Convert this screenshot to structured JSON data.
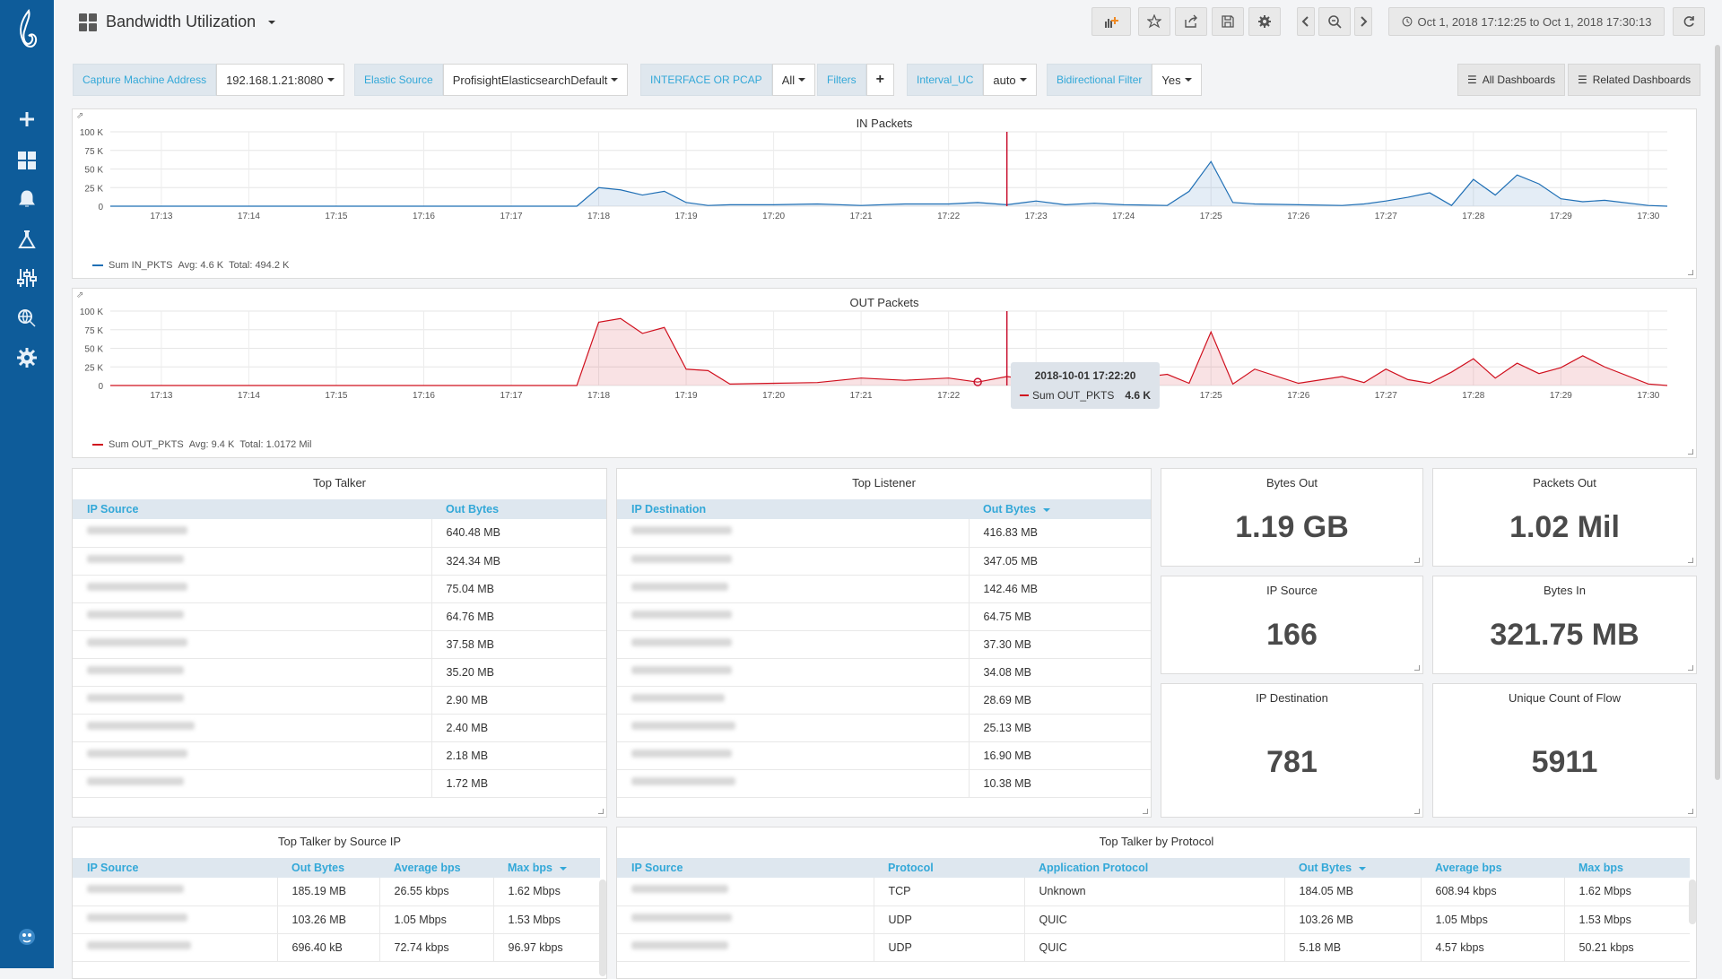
{
  "topbar": {
    "title": "Bandwidth Utilization",
    "time_range": "Oct 1, 2018 17:12:25 to Oct 1, 2018 17:30:13"
  },
  "variables": [
    {
      "label": "Capture Machine Address",
      "value": "192.168.1.21:8080"
    },
    {
      "label": "Elastic Source",
      "value": "ProfisightElasticsearchDefault"
    },
    {
      "label": "INTERFACE OR PCAP",
      "value": "All"
    },
    {
      "label": "Filters",
      "value": "+"
    },
    {
      "label": "Interval_UC",
      "value": "auto"
    },
    {
      "label": "Bidirectional Filter",
      "value": "Yes"
    }
  ],
  "links": {
    "all_dashboards": "All Dashboards",
    "related_dashboards": "Related Dashboards"
  },
  "sidebar": {
    "icons": [
      "logo-icon",
      "plus-icon",
      "dashboards-icon",
      "alerts-icon",
      "explore-icon",
      "sliders-icon",
      "search-globe-icon",
      "settings-icon",
      "avatar-icon"
    ]
  },
  "chart_data": [
    {
      "type": "area",
      "title": "IN Packets",
      "x_ticks": [
        "17:13",
        "17:14",
        "17:15",
        "17:16",
        "17:17",
        "17:18",
        "17:19",
        "17:20",
        "17:21",
        "17:22",
        "17:23",
        "17:24",
        "17:25",
        "17:26",
        "17:27",
        "17:28",
        "17:29",
        "17:30"
      ],
      "y_ticks": [
        "100 K",
        "75 K",
        "50 K",
        "25 K",
        "0"
      ],
      "ylim": [
        0,
        100000
      ],
      "xlim": [
        "17:12:25",
        "17:30:13"
      ],
      "color": "#1f6fb5",
      "series": [
        {
          "name": "Sum IN_PKTS",
          "avg": "Avg: 4.6 K",
          "total": "Total: 494.2 K",
          "x": [
            "17:12:25",
            "17:13",
            "17:14",
            "17:15",
            "17:16",
            "17:17",
            "17:17:45",
            "17:18",
            "17:18:15",
            "17:18:30",
            "17:18:45",
            "17:19",
            "17:19:15",
            "17:19:30",
            "17:20",
            "17:20:30",
            "17:21",
            "17:21:30",
            "17:22",
            "17:22:20",
            "17:22:40",
            "17:23",
            "17:23:20",
            "17:23:40",
            "17:24",
            "17:24:30",
            "17:24:45",
            "17:25",
            "17:25:15",
            "17:25:30",
            "17:26",
            "17:26:30",
            "17:26:45",
            "17:27",
            "17:27:15",
            "17:27:30",
            "17:27:45",
            "17:28",
            "17:28:15",
            "17:28:30",
            "17:28:45",
            "17:29",
            "17:29:15",
            "17:29:30",
            "17:30",
            "17:30:13"
          ],
          "values": [
            0,
            0,
            0,
            0,
            0,
            0,
            0,
            25000,
            22000,
            15000,
            20000,
            5000,
            1000,
            2000,
            2000,
            3000,
            1000,
            3000,
            3000,
            5000,
            2000,
            7000,
            2000,
            4000,
            2000,
            1000,
            20000,
            60000,
            5000,
            3000,
            2000,
            1000,
            3000,
            7000,
            12000,
            18000,
            1000,
            36000,
            15000,
            42000,
            30000,
            10000,
            6000,
            8000,
            1000,
            0
          ]
        }
      ]
    },
    {
      "type": "area",
      "title": "OUT Packets",
      "x_ticks": [
        "17:13",
        "17:14",
        "17:15",
        "17:16",
        "17:17",
        "17:18",
        "17:19",
        "17:20",
        "17:21",
        "17:22",
        "17:23",
        "17:24",
        "17:25",
        "17:26",
        "17:27",
        "17:28",
        "17:29",
        "17:30"
      ],
      "y_ticks": [
        "100 K",
        "75 K",
        "50 K",
        "25 K",
        "0"
      ],
      "ylim": [
        0,
        100000
      ],
      "xlim": [
        "17:12:25",
        "17:30:13"
      ],
      "color": "#d0101e",
      "series": [
        {
          "name": "Sum OUT_PKTS",
          "avg": "Avg: 9.4 K",
          "total": "Total: 1.0172 Mil",
          "x": [
            "17:12:25",
            "17:13",
            "17:14",
            "17:15",
            "17:16",
            "17:17",
            "17:17:45",
            "17:18",
            "17:18:15",
            "17:18:30",
            "17:18:45",
            "17:19",
            "17:19:15",
            "17:19:30",
            "17:20",
            "17:20:30",
            "17:21",
            "17:21:30",
            "17:22",
            "17:22:20",
            "17:22:40",
            "17:23",
            "17:23:20",
            "17:23:40",
            "17:24",
            "17:24:30",
            "17:24:45",
            "17:25",
            "17:25:15",
            "17:25:30",
            "17:26",
            "17:26:30",
            "17:26:45",
            "17:27",
            "17:27:15",
            "17:27:30",
            "17:27:45",
            "17:28",
            "17:28:15",
            "17:28:30",
            "17:28:45",
            "17:29",
            "17:29:15",
            "17:29:30",
            "17:30",
            "17:30:13"
          ],
          "values": [
            0,
            0,
            0,
            0,
            0,
            0,
            0,
            85000,
            90000,
            70000,
            78000,
            22000,
            20000,
            2000,
            3000,
            4000,
            10000,
            7000,
            10000,
            4600,
            12000,
            7000,
            10000,
            5000,
            8000,
            15000,
            3000,
            72000,
            2000,
            22000,
            3000,
            12000,
            4000,
            22000,
            8000,
            3000,
            18000,
            36000,
            10000,
            30000,
            16000,
            24000,
            40000,
            25000,
            2000,
            0
          ]
        }
      ]
    }
  ],
  "hover": {
    "time": "2018-10-01 17:22:20",
    "series": "Sum OUT_PKTS",
    "value": "4.6 K"
  },
  "top_talker": {
    "title": "Top Talker",
    "headers": [
      "IP Source",
      "Out Bytes"
    ],
    "rows": [
      [
        "192.168.1.150",
        "640.48 MB"
      ],
      [
        "192.168.1.75",
        "324.34 MB"
      ],
      [
        "192.168.1.130",
        "75.04 MB"
      ],
      [
        "192.168.1.65",
        "64.76 MB"
      ],
      [
        "192.168.1.188",
        "37.58 MB"
      ],
      [
        "192.168.1.66",
        "35.20 MB"
      ],
      [
        "192.168.1.30",
        "2.90 MB"
      ],
      [
        "100.117.126.188",
        "2.40 MB"
      ],
      [
        "192.168.1.135",
        "2.18 MB"
      ],
      [
        "192.168.1.12",
        "1.72 MB"
      ]
    ]
  },
  "top_listener": {
    "title": "Top Listener",
    "headers": [
      "IP Destination",
      "Out Bytes"
    ],
    "rows": [
      [
        "210.255.8.000",
        "416.83 MB"
      ],
      [
        "210.255.8.000",
        "347.05 MB"
      ],
      [
        "74.125.8.215",
        "142.46 MB"
      ],
      [
        "192.168.1.200",
        "64.75 MB"
      ],
      [
        "210.255.8.200",
        "37.30 MB"
      ],
      [
        "208.85.200.75",
        "34.08 MB"
      ],
      [
        "10.107.4.80",
        "28.69 MB"
      ],
      [
        "172.217.160.46",
        "25.13 MB"
      ],
      [
        "209.85.210.25",
        "16.90 MB"
      ],
      [
        "210.100.10.210",
        "10.38 MB"
      ]
    ]
  },
  "stats": [
    {
      "title": "Bytes Out",
      "value": "1.19 GB"
    },
    {
      "title": "Packets Out",
      "value": "1.02 Mil"
    },
    {
      "title": "IP Source",
      "value": "166"
    },
    {
      "title": "Bytes In",
      "value": "321.75 MB"
    },
    {
      "title": "IP Destination",
      "value": "781"
    },
    {
      "title": "Unique Count of Flow",
      "value": "5911"
    }
  ],
  "talker_by_ip": {
    "title": "Top Talker by Source IP",
    "headers": [
      "IP Source",
      "Out Bytes",
      "Average bps",
      "Max bps"
    ],
    "rows": [
      [
        "192.168.1.66",
        "185.19 MB",
        "26.55 kbps",
        "1.62 Mbps"
      ],
      [
        "208.85.200.75",
        "103.26 MB",
        "1.05 Mbps",
        "1.53 Mbps"
      ],
      [
        "172.100.75.200",
        "696.40 kB",
        "72.74 kbps",
        "96.97 kbps"
      ]
    ]
  },
  "talker_by_protocol": {
    "title": "Top Talker by Protocol",
    "headers": [
      "IP Source",
      "Protocol",
      "Application Protocol",
      "Out Bytes",
      "Average bps",
      "Max bps"
    ],
    "rows": [
      [
        "192.168.1.66",
        "TCP",
        "Unknown",
        "184.05 MB",
        "608.94 kbps",
        "1.62 Mbps"
      ],
      [
        "208.85.200.75",
        "UDP",
        "QUIC",
        "103.26 MB",
        "1.05 Mbps",
        "1.53 Mbps"
      ],
      [
        "192.168.1.75",
        "UDP",
        "QUIC",
        "5.18 MB",
        "4.57 kbps",
        "50.21 kbps"
      ]
    ]
  }
}
